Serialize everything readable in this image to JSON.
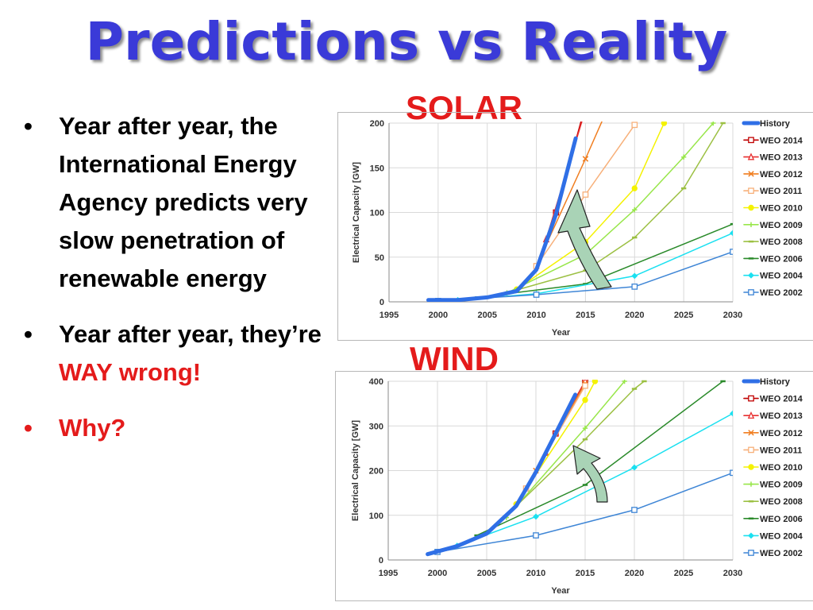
{
  "slide": {
    "title": "Predictions vs Reality",
    "bullets": [
      {
        "text": "Year after year, the International Energy Agency predicts very slow penetration of renewable energy",
        "emph": "",
        "after": ""
      },
      {
        "text": "Year after year, they’re ",
        "emph": "WAY wrong!",
        "after": ""
      },
      {
        "text": "",
        "emph": "Why?",
        "after": ""
      }
    ],
    "bullet_glyph": "•"
  },
  "colors": {
    "title": "#3a3ad8",
    "label_red": "#e41b1b",
    "arrow_fill": "#a9d3b6"
  },
  "chart_data": [
    {
      "type": "line",
      "label": "SOLAR",
      "xlabel": "Year",
      "ylabel": "Electrical Capacity [GW]",
      "xlim": [
        1995,
        2030
      ],
      "ylim": [
        0,
        200
      ],
      "xticks": [
        1995,
        2000,
        2005,
        2010,
        2015,
        2020,
        2025,
        2030
      ],
      "yticks": [
        0,
        50,
        100,
        150,
        200
      ],
      "legend_position": "right",
      "series": [
        {
          "name": "History",
          "color": "#2f6fe6",
          "marker": "none",
          "width": 5,
          "points": [
            [
              1999,
              2
            ],
            [
              2002,
              2
            ],
            [
              2005,
              5
            ],
            [
              2008,
              12
            ],
            [
              2010,
              36
            ],
            [
              2012,
              98
            ],
            [
              2014,
              183
            ]
          ]
        },
        {
          "name": "WEO 2014",
          "color": "#c00000",
          "marker": "square",
          "width": 1.5,
          "points": [
            [
              2012,
              100
            ],
            [
              2015,
              220
            ]
          ]
        },
        {
          "name": "WEO 2013",
          "color": "#e83030",
          "marker": "triangle",
          "width": 1.5,
          "points": [
            [
              2011,
              70
            ],
            [
              2015,
              215
            ]
          ]
        },
        {
          "name": "WEO 2012",
          "color": "#f07d1f",
          "marker": "x",
          "width": 1.5,
          "points": [
            [
              2010,
              40
            ],
            [
              2015,
              160
            ],
            [
              2017,
              210
            ]
          ]
        },
        {
          "name": "WEO 2011",
          "color": "#f7b07a",
          "marker": "square",
          "width": 1.5,
          "points": [
            [
              2010,
              40
            ],
            [
              2015,
              120
            ],
            [
              2020,
              198
            ]
          ]
        },
        {
          "name": "WEO 2010",
          "color": "#f4f200",
          "marker": "circle",
          "width": 1.5,
          "points": [
            [
              2008,
              14
            ],
            [
              2015,
              67
            ],
            [
              2020,
              127
            ],
            [
              2023,
              200
            ]
          ]
        },
        {
          "name": "WEO 2009",
          "color": "#98e64a",
          "marker": "plus",
          "width": 1.5,
          "points": [
            [
              2007,
              10
            ],
            [
              2015,
              53
            ],
            [
              2020,
              103
            ],
            [
              2025,
              162
            ],
            [
              2028,
              200
            ]
          ]
        },
        {
          "name": "WEO 2008",
          "color": "#9cc043",
          "marker": "dash",
          "width": 1.5,
          "points": [
            [
              2006,
              7
            ],
            [
              2015,
              35
            ],
            [
              2020,
              72
            ],
            [
              2025,
              127
            ],
            [
              2029,
              200
            ]
          ]
        },
        {
          "name": "WEO 2006",
          "color": "#2a8a2a",
          "marker": "dash",
          "width": 1.5,
          "points": [
            [
              2004,
              5
            ],
            [
              2015,
              20
            ],
            [
              2030,
              87
            ]
          ]
        },
        {
          "name": "WEO 2004",
          "color": "#1ae0f0",
          "marker": "diamond",
          "width": 1.5,
          "points": [
            [
              2002,
              2
            ],
            [
              2010,
              9
            ],
            [
              2020,
              29
            ],
            [
              2030,
              77
            ]
          ]
        },
        {
          "name": "WEO 2002",
          "color": "#3f86d6",
          "marker": "square",
          "width": 1.5,
          "points": [
            [
              2000,
              1
            ],
            [
              2010,
              8
            ],
            [
              2020,
              17
            ],
            [
              2030,
              56
            ]
          ]
        }
      ]
    },
    {
      "type": "line",
      "label": "WIND",
      "xlabel": "Year",
      "ylabel": "Electrical Capacity [GW]",
      "xlim": [
        1995,
        2030
      ],
      "ylim": [
        0,
        400
      ],
      "xticks": [
        1995,
        2000,
        2005,
        2010,
        2015,
        2020,
        2025,
        2030
      ],
      "yticks": [
        0,
        100,
        200,
        300,
        400
      ],
      "legend_position": "right",
      "series": [
        {
          "name": "History",
          "color": "#2f6fe6",
          "marker": "none",
          "width": 5,
          "points": [
            [
              1999,
              13
            ],
            [
              2002,
              31
            ],
            [
              2005,
              59
            ],
            [
              2008,
              121
            ],
            [
              2010,
              197
            ],
            [
              2012,
              283
            ],
            [
              2014,
              370
            ]
          ]
        },
        {
          "name": "WEO 2014",
          "color": "#c00000",
          "marker": "square",
          "width": 1.5,
          "points": [
            [
              2012,
              283
            ],
            [
              2015,
              400
            ]
          ]
        },
        {
          "name": "WEO 2013",
          "color": "#e83030",
          "marker": "triangle",
          "width": 1.5,
          "points": [
            [
              2011,
              240
            ],
            [
              2015,
              400
            ]
          ]
        },
        {
          "name": "WEO 2012",
          "color": "#f07d1f",
          "marker": "x",
          "width": 1.5,
          "points": [
            [
              2010,
              200
            ],
            [
              2015,
              395
            ]
          ]
        },
        {
          "name": "WEO 2011",
          "color": "#f7b07a",
          "marker": "square",
          "width": 1.5,
          "points": [
            [
              2009,
              160
            ],
            [
              2015,
              390
            ]
          ]
        },
        {
          "name": "WEO 2010",
          "color": "#f4f200",
          "marker": "circle",
          "width": 1.5,
          "points": [
            [
              2008,
              125
            ],
            [
              2015,
              358
            ],
            [
              2016,
              400
            ]
          ]
        },
        {
          "name": "WEO 2009",
          "color": "#98e64a",
          "marker": "plus",
          "width": 1.5,
          "points": [
            [
              2007,
              95
            ],
            [
              2015,
              295
            ],
            [
              2019,
              400
            ]
          ]
        },
        {
          "name": "WEO 2008",
          "color": "#9cc043",
          "marker": "dash",
          "width": 1.5,
          "points": [
            [
              2006,
              78
            ],
            [
              2015,
              270
            ],
            [
              2020,
              383
            ],
            [
              2021,
              400
            ]
          ]
        },
        {
          "name": "WEO 2006",
          "color": "#2a8a2a",
          "marker": "dash",
          "width": 1.5,
          "points": [
            [
              2004,
              55
            ],
            [
              2015,
              168
            ],
            [
              2029,
              400
            ]
          ]
        },
        {
          "name": "WEO 2004",
          "color": "#1ae0f0",
          "marker": "diamond",
          "width": 1.5,
          "points": [
            [
              2002,
              32
            ],
            [
              2010,
              97
            ],
            [
              2020,
              207
            ],
            [
              2030,
              328
            ]
          ]
        },
        {
          "name": "WEO 2002",
          "color": "#3f86d6",
          "marker": "square",
          "width": 1.5,
          "points": [
            [
              2000,
              18
            ],
            [
              2010,
              55
            ],
            [
              2020,
              112
            ],
            [
              2030,
              195
            ]
          ]
        }
      ]
    }
  ]
}
